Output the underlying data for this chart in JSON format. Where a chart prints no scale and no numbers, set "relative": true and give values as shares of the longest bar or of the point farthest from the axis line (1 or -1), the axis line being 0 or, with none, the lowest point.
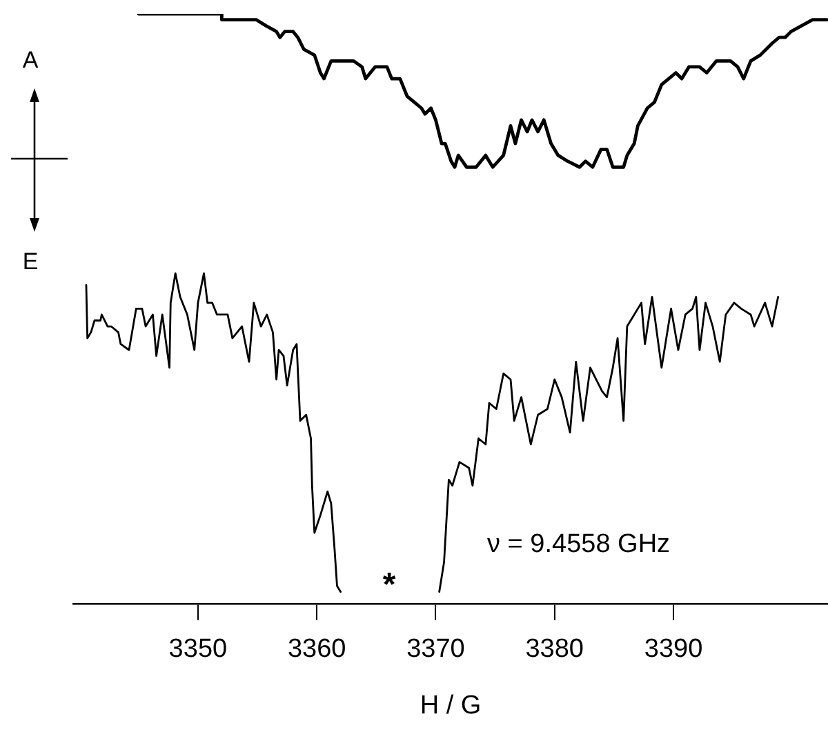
{
  "chart_data": {
    "type": "line",
    "relative": true,
    "xlabel": "H / G",
    "xlim": [
      3339.5,
      3403
    ],
    "xticks": [
      3350,
      3360,
      3370,
      3380,
      3390
    ],
    "grid": false,
    "legend": false,
    "marker": "none",
    "line_style": "solid",
    "annotations": [
      "A",
      "E",
      "ν = 9.4558 GHz",
      "*"
    ],
    "series": [
      {
        "color": "#000000",
        "x": [
          3345.0,
          3352.0,
          3352.0,
          3354.9,
          3355.7,
          3356.6,
          3356.9,
          3357.3,
          3358.0,
          3358.4,
          3358.9,
          3359.8,
          3360.3,
          3360.6,
          3361.2,
          3362.2,
          3363.1,
          3363.8,
          3364.1,
          3364.9,
          3365.9,
          3366.3,
          3367.0,
          3367.6,
          3368.2,
          3368.8,
          3369.1,
          3369.6,
          3370.0,
          3370.5,
          3370.8,
          3371.3,
          3371.6,
          3371.9,
          3372.6,
          3373.4,
          3374.2,
          3374.8,
          3375.7,
          3376.3,
          3376.7,
          3377.2,
          3377.7,
          3378.1,
          3378.6,
          3379.1,
          3379.7,
          3380.3,
          3381.1,
          3382.1,
          3382.6,
          3383.2,
          3383.9,
          3384.4,
          3384.9,
          3385.8,
          3386.1,
          3386.7,
          3387.0,
          3387.8,
          3388.4,
          3389.0,
          3389.6,
          3390.2,
          3390.7,
          3391.3,
          3392.2,
          3392.8,
          3393.6,
          3394.0,
          3394.8,
          3395.4,
          3395.9,
          3396.5,
          3397.3,
          3398.3,
          3398.9,
          3399.4,
          3399.9,
          3400.8,
          3401.7,
          3402.9
        ],
        "values": [
          1.0,
          1.0,
          0.99,
          0.99,
          0.98,
          0.97,
          0.96,
          0.97,
          0.97,
          0.96,
          0.94,
          0.93,
          0.9,
          0.89,
          0.92,
          0.92,
          0.92,
          0.91,
          0.89,
          0.91,
          0.91,
          0.89,
          0.89,
          0.86,
          0.85,
          0.84,
          0.83,
          0.84,
          0.82,
          0.78,
          0.78,
          0.75,
          0.74,
          0.76,
          0.74,
          0.74,
          0.76,
          0.74,
          0.76,
          0.81,
          0.78,
          0.82,
          0.8,
          0.82,
          0.8,
          0.82,
          0.78,
          0.76,
          0.75,
          0.74,
          0.75,
          0.74,
          0.77,
          0.77,
          0.74,
          0.74,
          0.76,
          0.78,
          0.81,
          0.84,
          0.85,
          0.88,
          0.89,
          0.9,
          0.89,
          0.91,
          0.91,
          0.9,
          0.92,
          0.92,
          0.92,
          0.91,
          0.89,
          0.92,
          0.93,
          0.95,
          0.96,
          0.96,
          0.97,
          0.98,
          0.99,
          0.99
        ]
      },
      {
        "color": "#000000",
        "x": [
          3340.6,
          3340.7,
          3341.0,
          3341.3,
          3341.8,
          3341.9,
          3342.4,
          3342.7,
          3343.3,
          3343.5,
          3344.2,
          3344.8,
          3345.3,
          3345.6,
          3346.2,
          3346.5,
          3347.0,
          3347.6,
          3347.7,
          3348.1,
          3348.5,
          3349.1,
          3349.7,
          3350.0,
          3350.5,
          3350.8,
          3351.2,
          3351.6,
          3352.5,
          3352.9,
          3353.7,
          3354.3,
          3354.7,
          3355.3,
          3355.8,
          3356.3,
          3356.6,
          3356.8,
          3357.2,
          3357.5,
          3358.0,
          3358.3,
          3358.6,
          3359.1,
          3359.5,
          3359.6,
          3359.8,
          3360.3,
          3360.9,
          3361.2,
          3361.5,
          3361.7,
          3362.0,
          3366.0,
          3370.3,
          3370.7,
          3371.1,
          3371.4,
          3372.0,
          3372.8,
          3373.1,
          3373.6,
          3374.2,
          3374.5,
          3375.1,
          3375.7,
          3376.3,
          3376.6,
          3377.2,
          3378.0,
          3378.6,
          3379.4,
          3380.0,
          3380.6,
          3381.3,
          3381.8,
          3382.4,
          3383.0,
          3384.0,
          3384.4,
          3384.9,
          3385.3,
          3385.8,
          3386.1,
          3386.7,
          3387.3,
          3387.6,
          3388.2,
          3389.0,
          3389.8,
          3390.4,
          3391.0,
          3391.6,
          3391.9,
          3392.2,
          3392.7,
          3393.3,
          3393.9,
          3394.4,
          3395.1,
          3395.7,
          3396.5,
          3396.8,
          3397.7,
          3398.3,
          3398.8
        ],
        "values": [
          0.54,
          0.45,
          0.46,
          0.48,
          0.48,
          0.49,
          0.47,
          0.47,
          0.46,
          0.44,
          0.43,
          0.5,
          0.5,
          0.47,
          0.49,
          0.42,
          0.49,
          0.4,
          0.51,
          0.56,
          0.52,
          0.49,
          0.43,
          0.51,
          0.56,
          0.51,
          0.51,
          0.49,
          0.49,
          0.45,
          0.47,
          0.41,
          0.51,
          0.47,
          0.49,
          0.46,
          0.38,
          0.43,
          0.42,
          0.37,
          0.43,
          0.44,
          0.31,
          0.32,
          0.28,
          0.2,
          0.12,
          0.15,
          0.19,
          0.17,
          0.09,
          0.03,
          0.02,
          null,
          0.02,
          0.07,
          0.21,
          0.2,
          0.24,
          0.23,
          0.2,
          0.28,
          0.27,
          0.34,
          0.33,
          0.39,
          0.38,
          0.31,
          0.35,
          0.27,
          0.32,
          0.33,
          0.38,
          0.35,
          0.29,
          0.41,
          0.31,
          0.4,
          0.36,
          0.35,
          0.4,
          0.45,
          0.31,
          0.47,
          0.49,
          0.51,
          0.44,
          0.52,
          0.4,
          0.5,
          0.43,
          0.49,
          0.5,
          0.52,
          0.43,
          0.51,
          0.47,
          0.41,
          0.49,
          0.51,
          0.5,
          0.49,
          0.47,
          0.51,
          0.47,
          0.52
        ]
      }
    ]
  }
}
